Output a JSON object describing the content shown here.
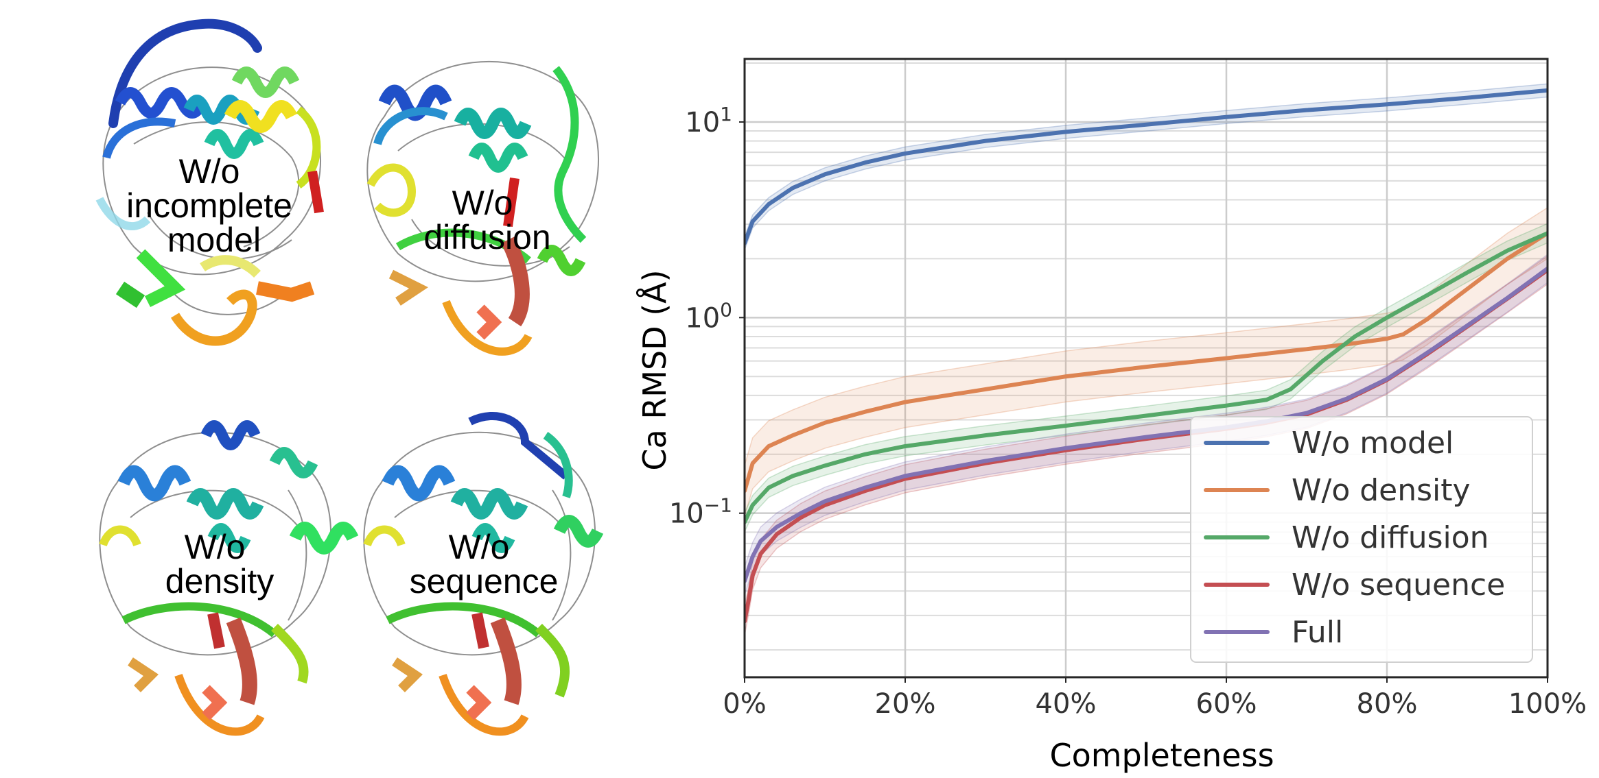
{
  "panels": [
    {
      "label_lines": [
        "W/o",
        "incomplete",
        "model"
      ]
    },
    {
      "label_lines": [
        "W/o",
        "diffusion"
      ]
    },
    {
      "label_lines": [
        "W/o",
        "density"
      ]
    },
    {
      "label_lines": [
        "W/o",
        "sequence"
      ]
    }
  ],
  "chart_data": {
    "type": "line",
    "title": "",
    "xlabel": "Completeness",
    "ylabel": "Ca RMSD (Å)",
    "yscale": "log",
    "xlim": [
      0,
      100
    ],
    "ylim": [
      0.0145,
      21
    ],
    "x_ticks": [
      0,
      20,
      40,
      60,
      80,
      100
    ],
    "x_tick_labels": [
      "0%",
      "20%",
      "40%",
      "60%",
      "80%",
      "100%"
    ],
    "y_ticks": [
      0.1,
      1,
      10
    ],
    "y_tick_labels": [
      {
        "base": "10",
        "exp": "−1"
      },
      {
        "base": "10",
        "exp": "0"
      },
      {
        "base": "10",
        "exp": "1"
      }
    ],
    "grid": true,
    "legend_position": "lower-right",
    "series": [
      {
        "name": "W/o model",
        "color": "#4c72b0",
        "x": [
          0,
          1,
          3,
          6,
          10,
          15,
          20,
          30,
          40,
          50,
          60,
          70,
          80,
          90,
          100
        ],
        "y": [
          2.4,
          3.1,
          3.8,
          4.6,
          5.4,
          6.2,
          6.9,
          8.0,
          8.9,
          9.7,
          10.6,
          11.5,
          12.3,
          13.3,
          14.5
        ]
      },
      {
        "name": "W/o density",
        "color": "#dd8452",
        "x": [
          0,
          1,
          3,
          6,
          10,
          15,
          20,
          30,
          40,
          50,
          60,
          70,
          75,
          80,
          82,
          85,
          90,
          95,
          100
        ],
        "y": [
          0.13,
          0.18,
          0.22,
          0.25,
          0.29,
          0.33,
          0.37,
          0.43,
          0.5,
          0.56,
          0.62,
          0.69,
          0.73,
          0.78,
          0.82,
          0.98,
          1.4,
          2.0,
          2.7
        ]
      },
      {
        "name": "W/o diffusion",
        "color": "#55a868",
        "x": [
          0,
          1,
          3,
          6,
          10,
          15,
          20,
          30,
          40,
          50,
          60,
          65,
          68,
          72,
          76,
          80,
          85,
          90,
          95,
          100
        ],
        "y": [
          0.09,
          0.11,
          0.135,
          0.155,
          0.175,
          0.2,
          0.22,
          0.25,
          0.28,
          0.315,
          0.355,
          0.38,
          0.43,
          0.6,
          0.8,
          1.0,
          1.3,
          1.7,
          2.2,
          2.7
        ]
      },
      {
        "name": "W/o sequence",
        "color": "#c44e52",
        "x": [
          0,
          0.5,
          1,
          2,
          4,
          7,
          10,
          15,
          20,
          30,
          40,
          50,
          60,
          65,
          70,
          75,
          80,
          85,
          90,
          95,
          100
        ],
        "y": [
          0.028,
          0.036,
          0.048,
          0.062,
          0.078,
          0.095,
          0.11,
          0.13,
          0.15,
          0.18,
          0.21,
          0.24,
          0.27,
          0.29,
          0.32,
          0.38,
          0.48,
          0.65,
          0.9,
          1.25,
          1.75
        ]
      },
      {
        "name": "Full",
        "color": "#8172b3",
        "x": [
          0,
          0.5,
          1,
          2,
          4,
          7,
          10,
          15,
          20,
          30,
          40,
          50,
          60,
          65,
          70,
          75,
          80,
          85,
          90,
          95,
          100
        ],
        "y": [
          0.045,
          0.052,
          0.06,
          0.072,
          0.085,
          0.1,
          0.115,
          0.135,
          0.155,
          0.185,
          0.215,
          0.245,
          0.275,
          0.295,
          0.325,
          0.385,
          0.485,
          0.66,
          0.91,
          1.26,
          1.78
        ]
      }
    ]
  }
}
